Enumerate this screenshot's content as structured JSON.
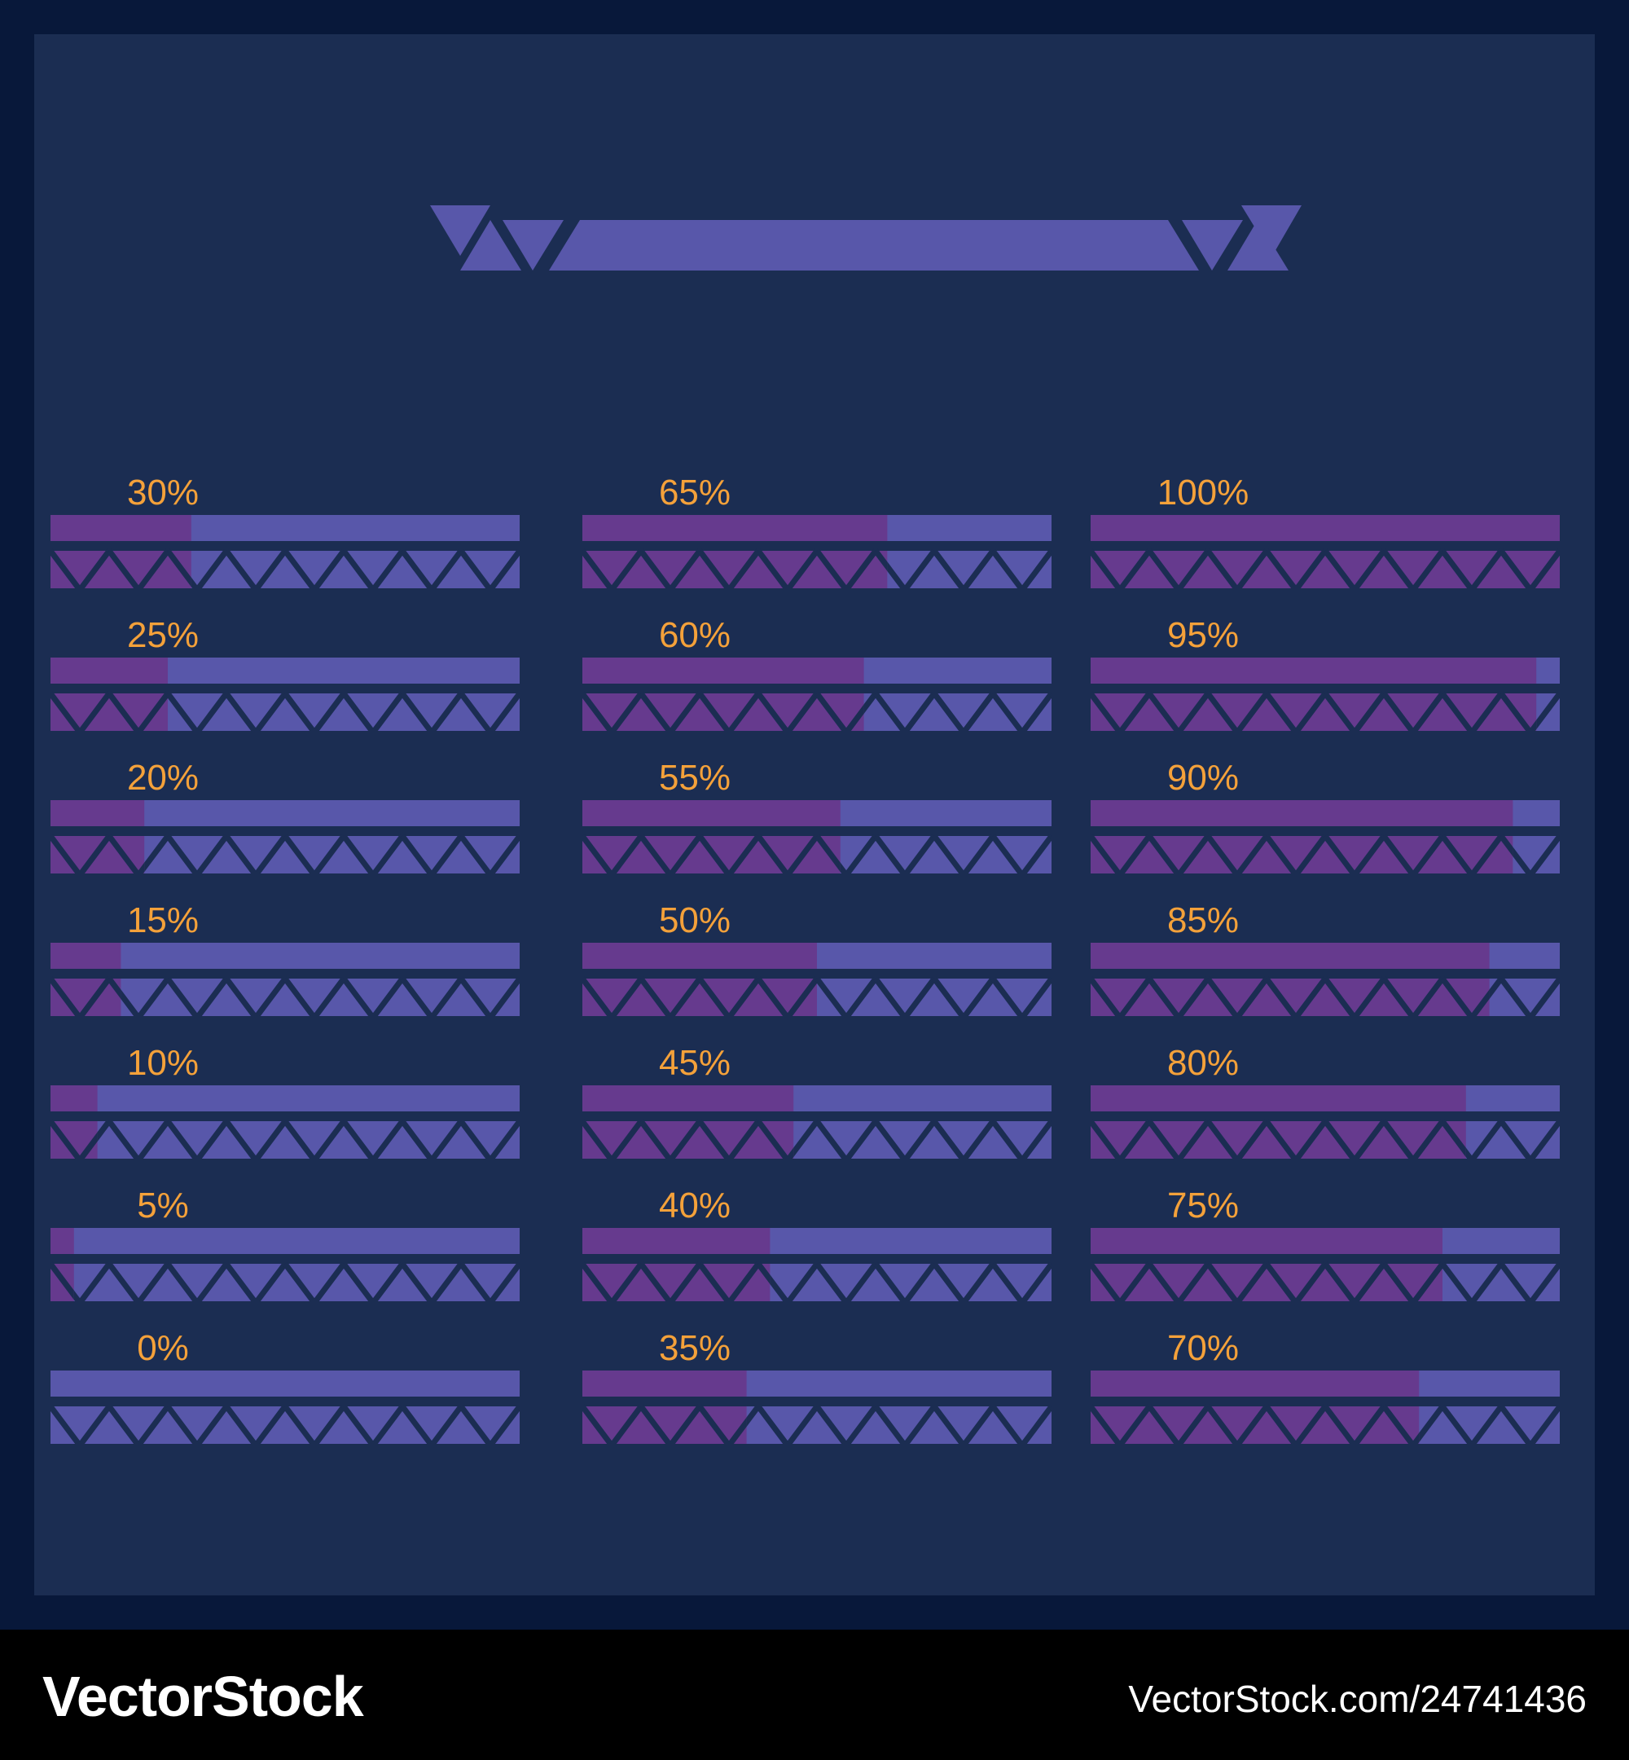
{
  "colors": {
    "frame": "#08183a",
    "panel": "#1b2d52",
    "track": "#5857aa",
    "fill": "#663a8e",
    "label": "#f4a13a",
    "footer_bg": "#000000",
    "footer_text": "#ffffff"
  },
  "bars": [
    {
      "label": "30%",
      "value": 30
    },
    {
      "label": "25%",
      "value": 25
    },
    {
      "label": "20%",
      "value": 20
    },
    {
      "label": "15%",
      "value": 15
    },
    {
      "label": "10%",
      "value": 10
    },
    {
      "label": "5%",
      "value": 5
    },
    {
      "label": "0%",
      "value": 0
    },
    {
      "label": "65%",
      "value": 65
    },
    {
      "label": "60%",
      "value": 60
    },
    {
      "label": "55%",
      "value": 55
    },
    {
      "label": "50%",
      "value": 50
    },
    {
      "label": "45%",
      "value": 45
    },
    {
      "label": "40%",
      "value": 40
    },
    {
      "label": "35%",
      "value": 35
    },
    {
      "label": "100%",
      "value": 100
    },
    {
      "label": "95%",
      "value": 95
    },
    {
      "label": "90%",
      "value": 90
    },
    {
      "label": "85%",
      "value": 85
    },
    {
      "label": "80%",
      "value": 80
    },
    {
      "label": "75%",
      "value": 75
    },
    {
      "label": "70%",
      "value": 70
    }
  ],
  "footer": {
    "brand": "VectorStock",
    "url": "VectorStock.com/24741436"
  }
}
